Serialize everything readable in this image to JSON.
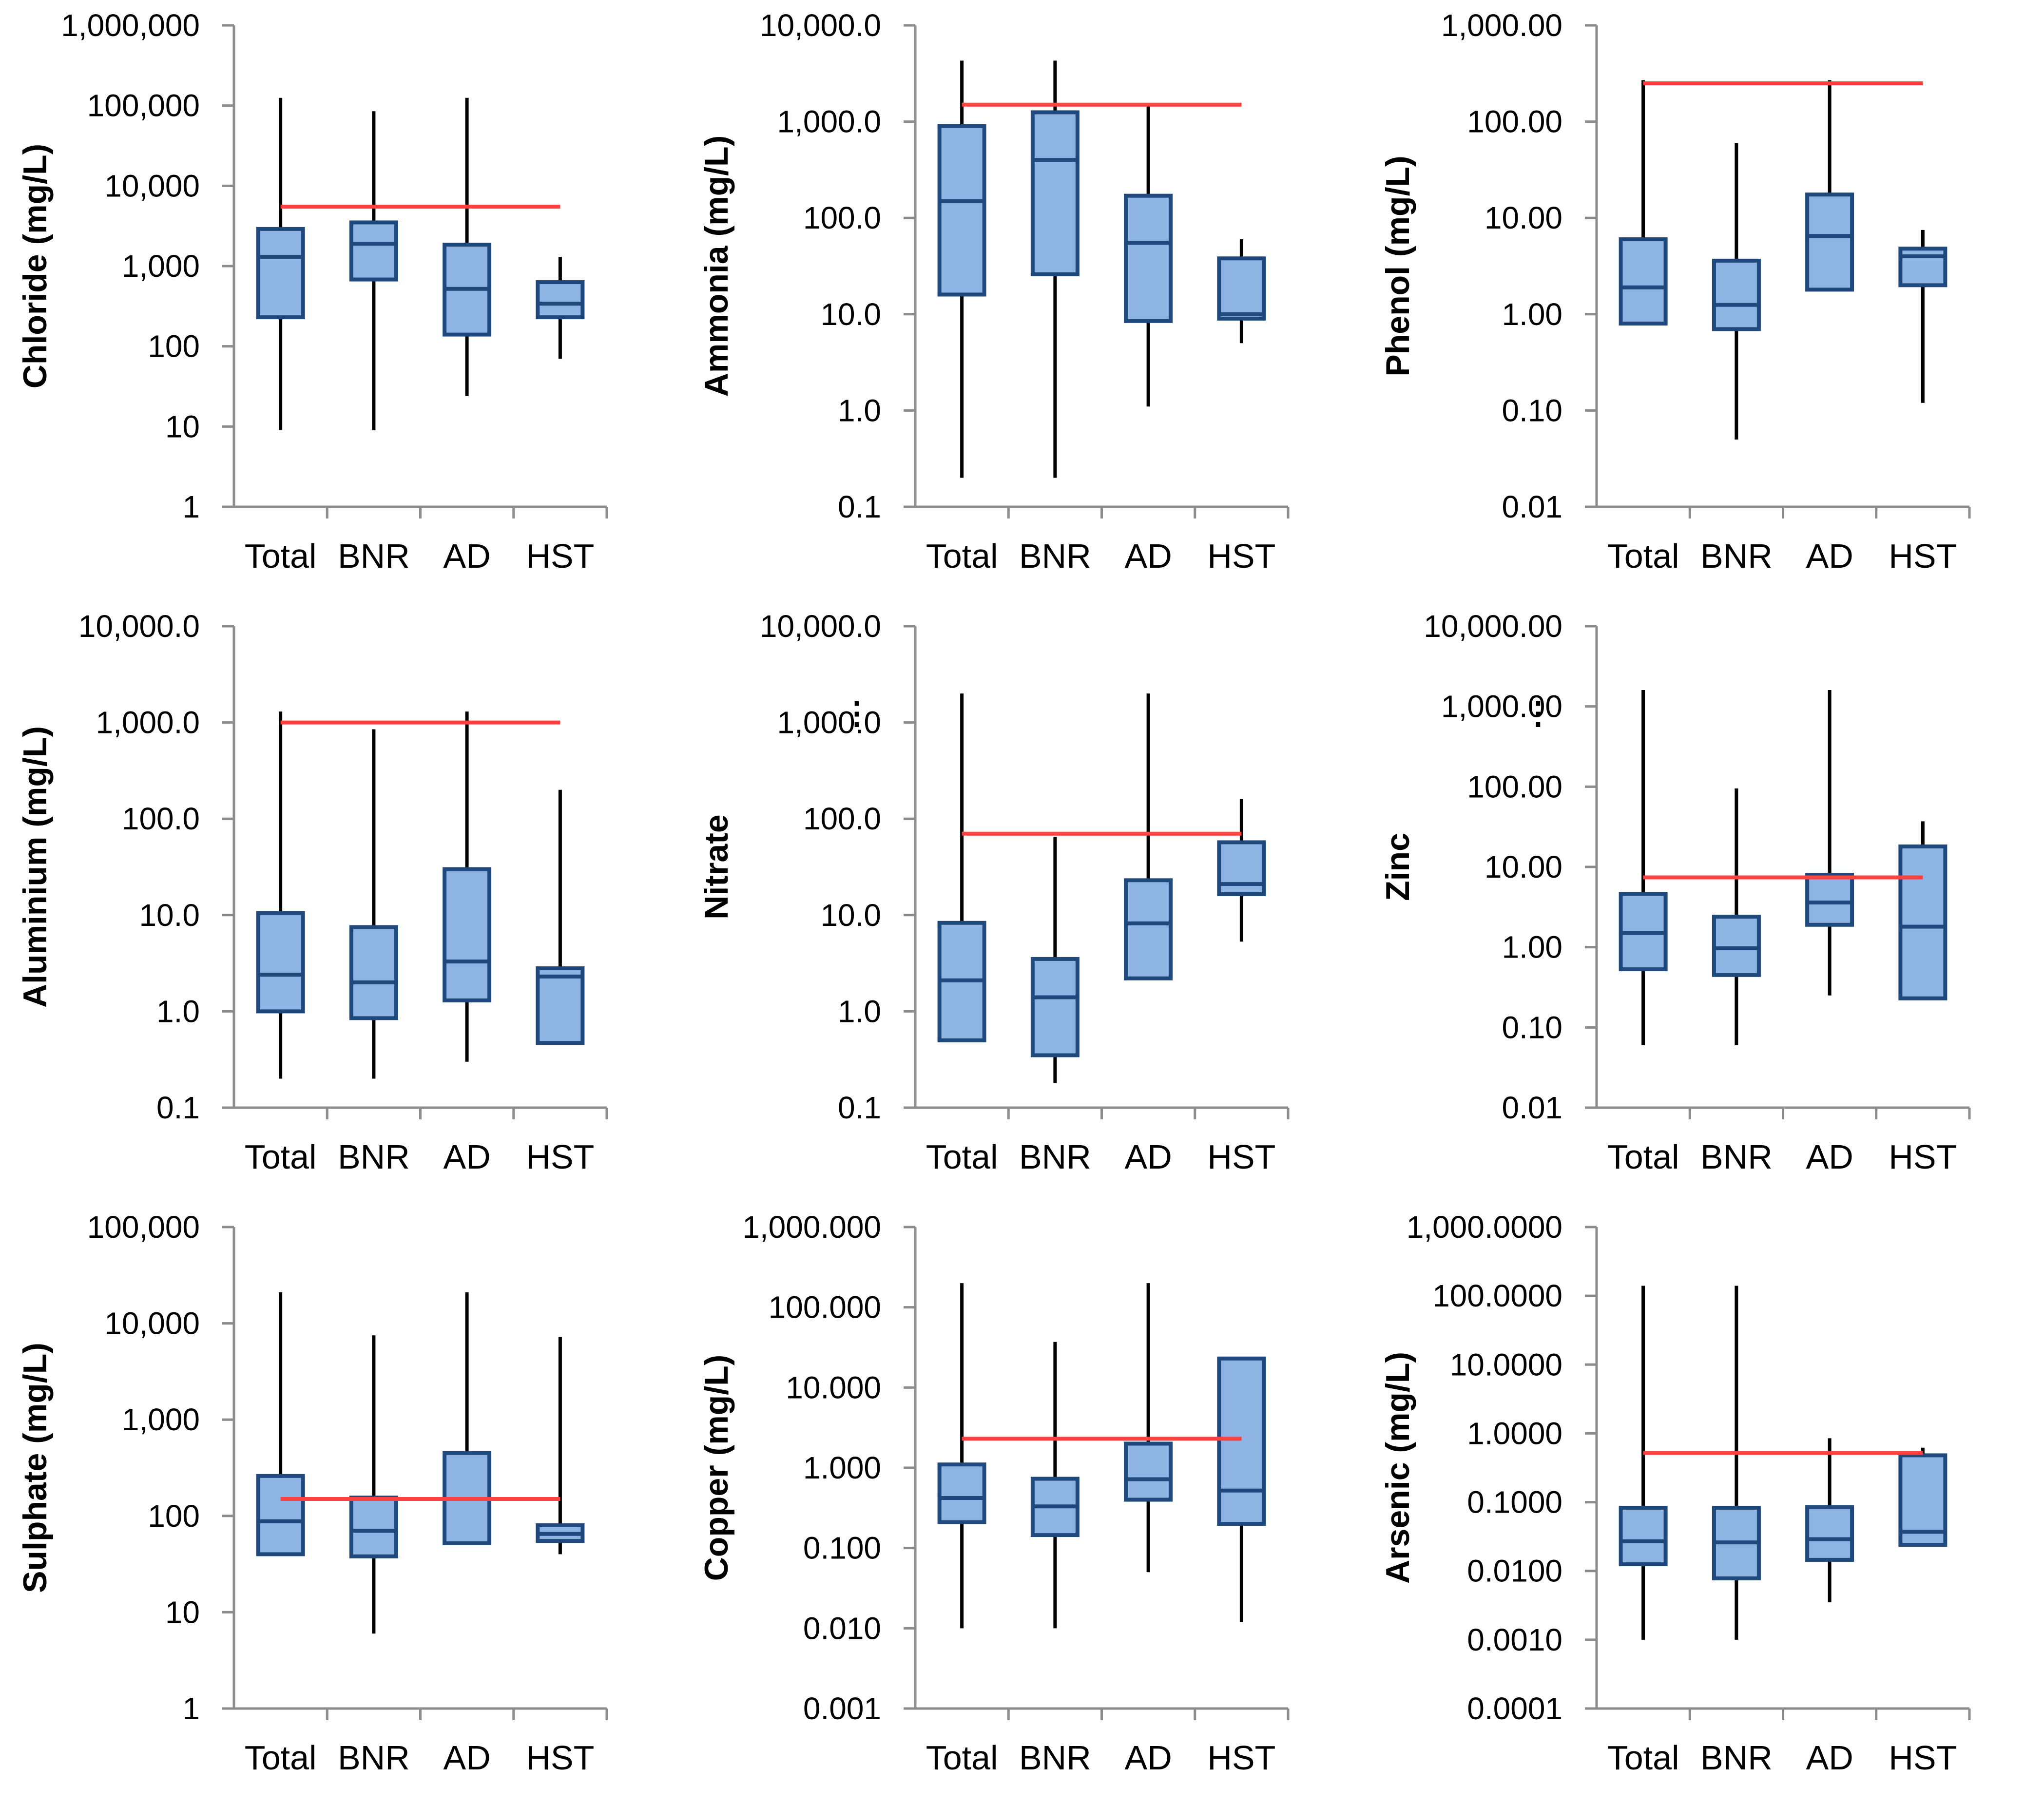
{
  "chart_data": [
    {
      "type": "boxplot",
      "ylabel": "Chloride (mg/L)",
      "yscale": "log",
      "ylim": [
        1,
        1000000
      ],
      "yticks": [
        "1",
        "10",
        "100",
        "1,000",
        "10,000",
        "100,000",
        "1,000,000"
      ],
      "categories": [
        "Total",
        "BNR",
        "AD",
        "HST"
      ],
      "boxes": [
        {
          "min": 9,
          "q1": 230,
          "median": 1300,
          "q3": 2900,
          "max": 125000
        },
        {
          "min": 9,
          "q1": 680,
          "median": 1900,
          "q3": 3500,
          "max": 85000
        },
        {
          "min": 24,
          "q1": 140,
          "median": 520,
          "q3": 1850,
          "max": 125000
        },
        {
          "min": 70,
          "q1": 230,
          "median": 340,
          "q3": 630,
          "max": 1300
        }
      ],
      "threshold": {
        "value": 5500,
        "from": "Total",
        "to": "HST"
      }
    },
    {
      "type": "boxplot",
      "ylabel": "Ammonia (mg/L)",
      "yscale": "log",
      "ylim": [
        0.1,
        10000
      ],
      "yticks": [
        "0.1",
        "1.0",
        "10.0",
        "100.0",
        "1,000.0",
        "10,000.0"
      ],
      "categories": [
        "Total",
        "BNR",
        "AD",
        "HST"
      ],
      "boxes": [
        {
          "min": 0.2,
          "q1": 16,
          "median": 150,
          "q3": 900,
          "max": 4300
        },
        {
          "min": 0.2,
          "q1": 26,
          "median": 400,
          "q3": 1250,
          "max": 4300
        },
        {
          "min": 1.1,
          "q1": 8.5,
          "median": 55,
          "q3": 170,
          "max": 1500
        },
        {
          "min": 5,
          "q1": 9,
          "median": 10,
          "q3": 38,
          "max": 60
        }
      ],
      "threshold": {
        "value": 1500,
        "from": "Total",
        "to": "HST"
      }
    },
    {
      "type": "boxplot",
      "ylabel": "Phenol (mg/L)",
      "yscale": "log",
      "ylim": [
        0.01,
        1000
      ],
      "yticks": [
        "0.01",
        "0.10",
        "1.00",
        "10.00",
        "100.00",
        "1,000.00"
      ],
      "categories": [
        "Total",
        "BNR",
        "AD",
        "HST"
      ],
      "boxes": [
        {
          "min": 0.8,
          "q1": 0.8,
          "median": 1.9,
          "q3": 6,
          "max": 270
        },
        {
          "min": 0.05,
          "q1": 0.7,
          "median": 1.25,
          "q3": 3.6,
          "max": 60
        },
        {
          "min": 1.8,
          "q1": 1.8,
          "median": 6.5,
          "q3": 17.5,
          "max": 270
        },
        {
          "min": 0.12,
          "q1": 2,
          "median": 4,
          "q3": 4.8,
          "max": 7.5
        }
      ],
      "threshold": {
        "value": 250,
        "from": "Total",
        "to": "HST"
      }
    },
    {
      "type": "boxplot",
      "ylabel": "Aluminium (mg/L)",
      "yscale": "log",
      "ylim": [
        0.1,
        10000
      ],
      "yticks": [
        "0.1",
        "1.0",
        "10.0",
        "100.0",
        "1,000.0",
        "10,000.0"
      ],
      "categories": [
        "Total",
        "BNR",
        "AD",
        "HST"
      ],
      "boxes": [
        {
          "min": 0.2,
          "q1": 1.0,
          "median": 2.4,
          "q3": 10.5,
          "max": 1300
        },
        {
          "min": 0.2,
          "q1": 0.85,
          "median": 2.0,
          "q3": 7.5,
          "max": 850
        },
        {
          "min": 0.3,
          "q1": 1.3,
          "median": 3.3,
          "q3": 30,
          "max": 1300
        },
        {
          "min": 0.47,
          "q1": 0.47,
          "median": 2.3,
          "q3": 2.8,
          "max": 200
        }
      ],
      "threshold": {
        "value": 1000,
        "from": "Total",
        "to": "HST"
      }
    },
    {
      "type": "boxplot",
      "ylabel": "Nitrate",
      "yscale": "log",
      "ylim": [
        0.1,
        10000
      ],
      "yticks": [
        "0.1",
        "1.0",
        "10.0",
        "100.0",
        "1,000.0",
        "10,000.0"
      ],
      "categories": [
        "Total",
        "BNR",
        "AD",
        "HST"
      ],
      "boxes": [
        {
          "min": 0.5,
          "q1": 0.5,
          "median": 2.1,
          "q3": 8.3,
          "max": 2000
        },
        {
          "min": 0.18,
          "q1": 0.35,
          "median": 1.4,
          "q3": 3.5,
          "max": 65
        },
        {
          "min": 2.2,
          "q1": 2.2,
          "median": 8.2,
          "q3": 23,
          "max": 2000
        },
        {
          "min": 5.3,
          "q1": 16.5,
          "median": 21,
          "q3": 57,
          "max": 160
        }
      ],
      "threshold": {
        "value": 70,
        "from": "Total",
        "to": "HST"
      },
      "marker": "⋮"
    },
    {
      "type": "boxplot",
      "ylabel": "Zinc",
      "yscale": "log",
      "ylim": [
        0.01,
        10000
      ],
      "yticks": [
        "0.01",
        "0.10",
        "1.00",
        "10.00",
        "100.00",
        "1,000.00",
        "10,000.00"
      ],
      "categories": [
        "Total",
        "BNR",
        "AD",
        "HST"
      ],
      "boxes": [
        {
          "min": 0.06,
          "q1": 0.53,
          "median": 1.5,
          "q3": 4.6,
          "max": 1600
        },
        {
          "min": 0.06,
          "q1": 0.45,
          "median": 0.97,
          "q3": 2.4,
          "max": 95
        },
        {
          "min": 0.25,
          "q1": 1.9,
          "median": 3.6,
          "q3": 8,
          "max": 1600
        },
        {
          "min": 0.23,
          "q1": 0.23,
          "median": 1.8,
          "q3": 18,
          "max": 37
        }
      ],
      "threshold": {
        "value": 7.4,
        "from": "Total",
        "to": "HST"
      },
      "marker": "⋮"
    },
    {
      "type": "boxplot",
      "ylabel": "Sulphate (mg/L)",
      "yscale": "log",
      "ylim": [
        1,
        100000
      ],
      "yticks": [
        "1",
        "10",
        "100",
        "1,000",
        "10,000",
        "100,000"
      ],
      "categories": [
        "Total",
        "BNR",
        "AD",
        "HST"
      ],
      "boxes": [
        {
          "min": 40,
          "q1": 40,
          "median": 88,
          "q3": 260,
          "max": 21000
        },
        {
          "min": 6,
          "q1": 38,
          "median": 70,
          "q3": 155,
          "max": 7500
        },
        {
          "min": 52,
          "q1": 52,
          "median": 150,
          "q3": 450,
          "max": 21000
        },
        {
          "min": 40,
          "q1": 55,
          "median": 65,
          "q3": 80,
          "max": 7200
        }
      ],
      "threshold": {
        "value": 150,
        "from": "Total",
        "to": "HST"
      }
    },
    {
      "type": "boxplot",
      "ylabel": "Copper (mg/L)",
      "yscale": "log",
      "ylim": [
        0.001,
        1000
      ],
      "yticks": [
        "0.001",
        "0.010",
        "0.100",
        "1.000",
        "10.000",
        "100.000",
        "1,000.000"
      ],
      "categories": [
        "Total",
        "BNR",
        "AD",
        "HST"
      ],
      "boxes": [
        {
          "min": 0.01,
          "q1": 0.21,
          "median": 0.42,
          "q3": 1.1,
          "max": 200
        },
        {
          "min": 0.01,
          "q1": 0.145,
          "median": 0.33,
          "q3": 0.73,
          "max": 37
        },
        {
          "min": 0.05,
          "q1": 0.4,
          "median": 0.72,
          "q3": 2.0,
          "max": 200
        },
        {
          "min": 0.012,
          "q1": 0.2,
          "median": 0.52,
          "q3": 23,
          "max": 23
        }
      ],
      "threshold": {
        "value": 2.3,
        "from": "Total",
        "to": "HST"
      }
    },
    {
      "type": "boxplot",
      "ylabel": "Arsenic (mg/L)",
      "yscale": "log",
      "ylim": [
        0.0001,
        1000
      ],
      "yticks": [
        "0.0001",
        "0.0010",
        "0.0100",
        "0.1000",
        "1.0000",
        "10.0000",
        "100.0000",
        "1,000.0000"
      ],
      "categories": [
        "Total",
        "BNR",
        "AD",
        "HST"
      ],
      "boxes": [
        {
          "min": 0.001,
          "q1": 0.0125,
          "median": 0.027,
          "q3": 0.083,
          "max": 140
        },
        {
          "min": 0.001,
          "q1": 0.0078,
          "median": 0.026,
          "q3": 0.083,
          "max": 140
        },
        {
          "min": 0.0035,
          "q1": 0.0145,
          "median": 0.029,
          "q3": 0.085,
          "max": 0.85
        },
        {
          "min": 0.024,
          "q1": 0.024,
          "median": 0.037,
          "q3": 0.48,
          "max": 0.62
        }
      ],
      "threshold": {
        "value": 0.52,
        "from": "Total",
        "to": "HST"
      }
    }
  ]
}
